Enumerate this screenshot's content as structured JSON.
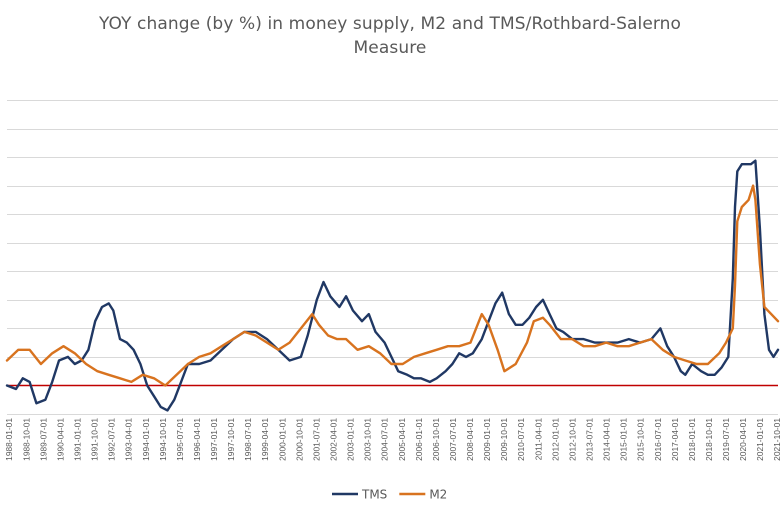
{
  "chart_data": {
    "type": "line",
    "title_lines": [
      "YOY change (by %) in money supply, M2 and TMS/Rothbard-Salerno",
      "Measure"
    ],
    "xlabel": "",
    "ylabel": "",
    "x_tick_labels": [
      "1988-01-01",
      "1988-10-01",
      "1989-07-01",
      "1990-04-01",
      "1991-01-01",
      "1991-10-01",
      "1992-07-01",
      "1993-04-01",
      "1994-01-01",
      "1994-10-01",
      "1995-07-01",
      "1996-04-01",
      "1997-01-01",
      "1997-10-01",
      "1998-07-01",
      "1999-04-01",
      "2000-01-01",
      "2000-10-01",
      "2001-07-01",
      "2002-04-01",
      "2003-01-01",
      "2003-10-01",
      "2004-07-01",
      "2005-04-01",
      "2006-01-01",
      "2006-10-01",
      "2007-07-01",
      "2008-04-01",
      "2009-01-01",
      "2009-10-01",
      "2010-07-01",
      "2011-04-01",
      "2012-01-01",
      "2012-10-01",
      "2013-07-01",
      "2014-04-01",
      "2015-01-01",
      "2015-10-01",
      "2016-07-01",
      "2017-04-01",
      "2018-01-01",
      "2018-10-01",
      "2019-07-01",
      "2020-04-01",
      "2021-01-01",
      "2021-10-01"
    ],
    "x_range": [
      1988.0,
      2022.1
    ],
    "ylim": [
      -4,
      40
    ],
    "y_tick_step": 4,
    "y_tick_labels_shown": false,
    "grid": true,
    "zero_line_color": "#c00000",
    "legend": "bottom",
    "series": [
      {
        "name": "TMS",
        "color": "#203864",
        "x": [
          1988.0,
          1988.4,
          1988.7,
          1989.0,
          1989.3,
          1989.7,
          1990.0,
          1990.3,
          1990.7,
          1991.0,
          1991.3,
          1991.6,
          1991.9,
          1992.2,
          1992.5,
          1992.7,
          1993.0,
          1993.3,
          1993.6,
          1993.9,
          1994.2,
          1994.5,
          1994.8,
          1995.1,
          1995.4,
          1995.7,
          1996.0,
          1996.5,
          1997.0,
          1997.5,
          1998.0,
          1998.5,
          1999.0,
          1999.5,
          2000.0,
          2000.5,
          2001.0,
          2001.3,
          2001.7,
          2002.0,
          2002.3,
          2002.7,
          2003.0,
          2003.3,
          2003.7,
          2004.0,
          2004.3,
          2004.7,
          2005.0,
          2005.3,
          2005.7,
          2006.0,
          2006.3,
          2006.7,
          2007.0,
          2007.4,
          2007.7,
          2008.0,
          2008.3,
          2008.6,
          2009.0,
          2009.3,
          2009.6,
          2009.9,
          2010.2,
          2010.5,
          2010.8,
          2011.1,
          2011.4,
          2011.7,
          2012.0,
          2012.3,
          2012.6,
          2013.0,
          2013.5,
          2014.0,
          2014.5,
          2015.0,
          2015.5,
          2016.0,
          2016.5,
          2016.9,
          2017.2,
          2017.5,
          2017.8,
          2018.0,
          2018.3,
          2018.7,
          2019.0,
          2019.3,
          2019.6,
          2019.9,
          2020.1,
          2020.2,
          2020.3,
          2020.5,
          2020.7,
          2020.9,
          2021.1,
          2021.3,
          2021.5,
          2021.7,
          2021.9,
          2022.1
        ],
        "values": [
          0.0,
          -0.5,
          1.0,
          0.5,
          -2.5,
          -2.0,
          0.5,
          3.5,
          4.0,
          3.0,
          3.5,
          5.0,
          9.0,
          11.0,
          11.5,
          10.5,
          6.5,
          6.0,
          5.0,
          3.0,
          0.0,
          -1.5,
          -3.0,
          -3.5,
          -2.0,
          0.5,
          3.0,
          3.0,
          3.5,
          5.0,
          6.5,
          7.5,
          7.5,
          6.5,
          5.0,
          3.5,
          4.0,
          7.0,
          12.0,
          14.5,
          12.5,
          11.0,
          12.5,
          10.5,
          9.0,
          10.0,
          7.5,
          6.0,
          4.0,
          2.0,
          1.5,
          1.0,
          1.0,
          0.5,
          1.0,
          2.0,
          3.0,
          4.5,
          4.0,
          4.5,
          6.5,
          9.0,
          11.5,
          13.0,
          10.0,
          8.5,
          8.5,
          9.5,
          11.0,
          12.0,
          10.0,
          8.0,
          7.5,
          6.5,
          6.5,
          6.0,
          6.0,
          6.0,
          6.5,
          6.0,
          6.5,
          8.0,
          5.5,
          4.0,
          2.0,
          1.5,
          3.0,
          2.0,
          1.5,
          1.5,
          2.5,
          4.0,
          15.0,
          25.0,
          30.0,
          31.0,
          31.0,
          31.0,
          31.5,
          22.0,
          10.0,
          5.0,
          4.0,
          5.0
        ]
      },
      {
        "name": "M2",
        "color": "#d8731f",
        "x": [
          1988.0,
          1988.5,
          1989.0,
          1989.5,
          1990.0,
          1990.5,
          1991.0,
          1991.5,
          1992.0,
          1992.5,
          1993.0,
          1993.5,
          1994.0,
          1994.5,
          1995.0,
          1995.5,
          1996.0,
          1996.5,
          1997.0,
          1997.5,
          1998.0,
          1998.5,
          1999.0,
          1999.5,
          2000.0,
          2000.5,
          2001.0,
          2001.5,
          2001.8,
          2002.2,
          2002.6,
          2003.0,
          2003.5,
          2004.0,
          2004.5,
          2005.0,
          2005.5,
          2006.0,
          2006.5,
          2007.0,
          2007.5,
          2008.0,
          2008.5,
          2009.0,
          2009.3,
          2009.7,
          2010.0,
          2010.5,
          2011.0,
          2011.3,
          2011.7,
          2012.0,
          2012.5,
          2013.0,
          2013.5,
          2014.0,
          2014.5,
          2015.0,
          2015.5,
          2016.0,
          2016.5,
          2017.0,
          2017.5,
          2018.0,
          2018.5,
          2019.0,
          2019.5,
          2019.8,
          2020.1,
          2020.2,
          2020.3,
          2020.5,
          2020.8,
          2021.0,
          2021.1,
          2021.3,
          2021.5,
          2021.8,
          2022.1
        ],
        "values": [
          3.5,
          5.0,
          5.0,
          3.0,
          4.5,
          5.5,
          4.5,
          3.0,
          2.0,
          1.5,
          1.0,
          0.5,
          1.5,
          1.0,
          0.0,
          1.5,
          3.0,
          4.0,
          4.5,
          5.5,
          6.5,
          7.5,
          7.0,
          6.0,
          5.0,
          6.0,
          8.0,
          10.0,
          8.5,
          7.0,
          6.5,
          6.5,
          5.0,
          5.5,
          4.5,
          3.0,
          3.0,
          4.0,
          4.5,
          5.0,
          5.5,
          5.5,
          6.0,
          10.0,
          8.5,
          5.0,
          2.0,
          3.0,
          6.0,
          9.0,
          9.5,
          8.5,
          6.5,
          6.5,
          5.5,
          5.5,
          6.0,
          5.5,
          5.5,
          6.0,
          6.5,
          5.0,
          4.0,
          3.5,
          3.0,
          3.0,
          4.5,
          6.0,
          8.0,
          14.0,
          23.0,
          25.0,
          26.0,
          28.0,
          26.0,
          17.0,
          11.0,
          10.0,
          9.0
        ]
      }
    ]
  }
}
